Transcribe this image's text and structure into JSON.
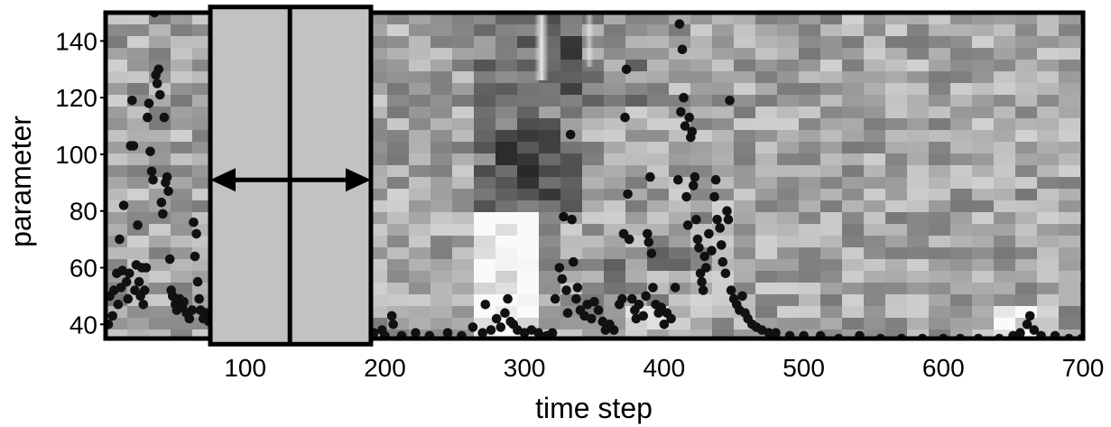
{
  "chart_data": {
    "type": "scatter",
    "title": "",
    "xlabel": "time step",
    "ylabel": "parameter",
    "xlim": [
      0,
      700
    ],
    "ylim": [
      35,
      150
    ],
    "xticks": [
      100,
      200,
      300,
      400,
      500,
      600,
      700
    ],
    "yticks": [
      40,
      60,
      80,
      100,
      120,
      140
    ],
    "grid": false,
    "background": "grayscale-heatmap",
    "colors": {
      "points": "#111111",
      "frame": "#000000",
      "window_fill": "#c2c2c2",
      "light_region": "#f2f2f2",
      "dark_region": "#3a3a3a"
    },
    "annotations": [
      {
        "type": "window-box",
        "x_range": [
          75,
          190
        ],
        "y_range": [
          33,
          152
        ],
        "center_x": 132
      },
      {
        "type": "double-arrow",
        "x_range": [
          75,
          190
        ],
        "y": 91
      }
    ],
    "points": [
      {
        "x": 2,
        "y": 40
      },
      {
        "x": 3,
        "y": 50
      },
      {
        "x": 5,
        "y": 43
      },
      {
        "x": 6,
        "y": 52
      },
      {
        "x": 8,
        "y": 58
      },
      {
        "x": 9,
        "y": 47
      },
      {
        "x": 10,
        "y": 70
      },
      {
        "x": 11,
        "y": 53
      },
      {
        "x": 12,
        "y": 59
      },
      {
        "x": 13,
        "y": 82
      },
      {
        "x": 15,
        "y": 55
      },
      {
        "x": 16,
        "y": 49
      },
      {
        "x": 17,
        "y": 58
      },
      {
        "x": 18,
        "y": 103
      },
      {
        "x": 19,
        "y": 119
      },
      {
        "x": 20,
        "y": 103
      },
      {
        "x": 21,
        "y": 52
      },
      {
        "x": 22,
        "y": 61
      },
      {
        "x": 23,
        "y": 75
      },
      {
        "x": 24,
        "y": 55
      },
      {
        "x": 25,
        "y": 50
      },
      {
        "x": 26,
        "y": 60
      },
      {
        "x": 27,
        "y": 47
      },
      {
        "x": 28,
        "y": 52
      },
      {
        "x": 29,
        "y": 60
      },
      {
        "x": 30,
        "y": 113
      },
      {
        "x": 31,
        "y": 118
      },
      {
        "x": 32,
        "y": 101
      },
      {
        "x": 33,
        "y": 94
      },
      {
        "x": 34,
        "y": 91
      },
      {
        "x": 35,
        "y": 150
      },
      {
        "x": 36,
        "y": 128
      },
      {
        "x": 37,
        "y": 125
      },
      {
        "x": 38,
        "y": 130
      },
      {
        "x": 39,
        "y": 121
      },
      {
        "x": 40,
        "y": 83
      },
      {
        "x": 41,
        "y": 79
      },
      {
        "x": 42,
        "y": 113
      },
      {
        "x": 43,
        "y": 90
      },
      {
        "x": 44,
        "y": 92
      },
      {
        "x": 45,
        "y": 87
      },
      {
        "x": 46,
        "y": 63
      },
      {
        "x": 47,
        "y": 52
      },
      {
        "x": 48,
        "y": 50
      },
      {
        "x": 50,
        "y": 47
      },
      {
        "x": 51,
        "y": 45
      },
      {
        "x": 53,
        "y": 49
      },
      {
        "x": 55,
        "y": 46
      },
      {
        "x": 56,
        "y": 48
      },
      {
        "x": 58,
        "y": 44
      },
      {
        "x": 60,
        "y": 42
      },
      {
        "x": 62,
        "y": 45
      },
      {
        "x": 63,
        "y": 76
      },
      {
        "x": 64,
        "y": 64
      },
      {
        "x": 65,
        "y": 72
      },
      {
        "x": 66,
        "y": 55
      },
      {
        "x": 67,
        "y": 49
      },
      {
        "x": 68,
        "y": 45
      },
      {
        "x": 70,
        "y": 42
      },
      {
        "x": 72,
        "y": 44
      },
      {
        "x": 74,
        "y": 41
      },
      {
        "x": 192,
        "y": 37
      },
      {
        "x": 198,
        "y": 38
      },
      {
        "x": 200,
        "y": 36
      },
      {
        "x": 205,
        "y": 43
      },
      {
        "x": 206,
        "y": 40
      },
      {
        "x": 212,
        "y": 36
      },
      {
        "x": 222,
        "y": 37
      },
      {
        "x": 232,
        "y": 36
      },
      {
        "x": 245,
        "y": 37
      },
      {
        "x": 255,
        "y": 36
      },
      {
        "x": 263,
        "y": 39
      },
      {
        "x": 270,
        "y": 37
      },
      {
        "x": 272,
        "y": 47
      },
      {
        "x": 276,
        "y": 38
      },
      {
        "x": 280,
        "y": 42
      },
      {
        "x": 283,
        "y": 39
      },
      {
        "x": 286,
        "y": 44
      },
      {
        "x": 288,
        "y": 49
      },
      {
        "x": 290,
        "y": 41
      },
      {
        "x": 292,
        "y": 40
      },
      {
        "x": 295,
        "y": 38
      },
      {
        "x": 300,
        "y": 37
      },
      {
        "x": 305,
        "y": 38
      },
      {
        "x": 310,
        "y": 37
      },
      {
        "x": 316,
        "y": 36
      },
      {
        "x": 320,
        "y": 37
      },
      {
        "x": 322,
        "y": 49
      },
      {
        "x": 325,
        "y": 60
      },
      {
        "x": 327,
        "y": 56
      },
      {
        "x": 328,
        "y": 78
      },
      {
        "x": 330,
        "y": 52
      },
      {
        "x": 331,
        "y": 44
      },
      {
        "x": 333,
        "y": 107
      },
      {
        "x": 334,
        "y": 77
      },
      {
        "x": 335,
        "y": 62
      },
      {
        "x": 337,
        "y": 49
      },
      {
        "x": 338,
        "y": 53
      },
      {
        "x": 340,
        "y": 45
      },
      {
        "x": 343,
        "y": 43
      },
      {
        "x": 345,
        "y": 47
      },
      {
        "x": 348,
        "y": 42
      },
      {
        "x": 350,
        "y": 48
      },
      {
        "x": 353,
        "y": 45
      },
      {
        "x": 356,
        "y": 41
      },
      {
        "x": 358,
        "y": 38
      },
      {
        "x": 361,
        "y": 40
      },
      {
        "x": 364,
        "y": 38
      },
      {
        "x": 368,
        "y": 47
      },
      {
        "x": 370,
        "y": 49
      },
      {
        "x": 371,
        "y": 72
      },
      {
        "x": 372,
        "y": 113
      },
      {
        "x": 373,
        "y": 130
      },
      {
        "x": 374,
        "y": 86
      },
      {
        "x": 375,
        "y": 70
      },
      {
        "x": 377,
        "y": 49
      },
      {
        "x": 379,
        "y": 45
      },
      {
        "x": 380,
        "y": 42
      },
      {
        "x": 382,
        "y": 47
      },
      {
        "x": 385,
        "y": 43
      },
      {
        "x": 387,
        "y": 50
      },
      {
        "x": 388,
        "y": 72
      },
      {
        "x": 389,
        "y": 69
      },
      {
        "x": 390,
        "y": 92
      },
      {
        "x": 391,
        "y": 65
      },
      {
        "x": 392,
        "y": 53
      },
      {
        "x": 394,
        "y": 47
      },
      {
        "x": 396,
        "y": 44
      },
      {
        "x": 398,
        "y": 46
      },
      {
        "x": 400,
        "y": 40
      },
      {
        "x": 402,
        "y": 44
      },
      {
        "x": 405,
        "y": 42
      },
      {
        "x": 408,
        "y": 53
      },
      {
        "x": 410,
        "y": 91
      },
      {
        "x": 411,
        "y": 146
      },
      {
        "x": 412,
        "y": 115
      },
      {
        "x": 413,
        "y": 137
      },
      {
        "x": 414,
        "y": 120
      },
      {
        "x": 415,
        "y": 110
      },
      {
        "x": 416,
        "y": 85
      },
      {
        "x": 417,
        "y": 75
      },
      {
        "x": 418,
        "y": 113
      },
      {
        "x": 419,
        "y": 106
      },
      {
        "x": 420,
        "y": 108
      },
      {
        "x": 421,
        "y": 89
      },
      {
        "x": 422,
        "y": 92
      },
      {
        "x": 423,
        "y": 77
      },
      {
        "x": 424,
        "y": 70
      },
      {
        "x": 425,
        "y": 67
      },
      {
        "x": 426,
        "y": 58
      },
      {
        "x": 427,
        "y": 55
      },
      {
        "x": 428,
        "y": 52
      },
      {
        "x": 429,
        "y": 64
      },
      {
        "x": 430,
        "y": 60
      },
      {
        "x": 432,
        "y": 72
      },
      {
        "x": 434,
        "y": 66
      },
      {
        "x": 436,
        "y": 85
      },
      {
        "x": 437,
        "y": 91
      },
      {
        "x": 438,
        "y": 77
      },
      {
        "x": 440,
        "y": 74
      },
      {
        "x": 441,
        "y": 68
      },
      {
        "x": 442,
        "y": 62
      },
      {
        "x": 444,
        "y": 58
      },
      {
        "x": 445,
        "y": 80
      },
      {
        "x": 446,
        "y": 77
      },
      {
        "x": 447,
        "y": 119
      },
      {
        "x": 448,
        "y": 52
      },
      {
        "x": 450,
        "y": 49
      },
      {
        "x": 452,
        "y": 47
      },
      {
        "x": 454,
        "y": 45
      },
      {
        "x": 456,
        "y": 50
      },
      {
        "x": 458,
        "y": 44
      },
      {
        "x": 460,
        "y": 42
      },
      {
        "x": 463,
        "y": 40
      },
      {
        "x": 466,
        "y": 39
      },
      {
        "x": 470,
        "y": 38
      },
      {
        "x": 475,
        "y": 37
      },
      {
        "x": 480,
        "y": 37
      },
      {
        "x": 490,
        "y": 36
      },
      {
        "x": 500,
        "y": 36
      },
      {
        "x": 512,
        "y": 36
      },
      {
        "x": 525,
        "y": 35
      },
      {
        "x": 540,
        "y": 36
      },
      {
        "x": 555,
        "y": 35
      },
      {
        "x": 570,
        "y": 35
      },
      {
        "x": 585,
        "y": 35
      },
      {
        "x": 600,
        "y": 35
      },
      {
        "x": 612,
        "y": 35
      },
      {
        "x": 625,
        "y": 35
      },
      {
        "x": 640,
        "y": 35
      },
      {
        "x": 650,
        "y": 36
      },
      {
        "x": 655,
        "y": 37
      },
      {
        "x": 660,
        "y": 40
      },
      {
        "x": 662,
        "y": 43
      },
      {
        "x": 665,
        "y": 38
      },
      {
        "x": 670,
        "y": 36
      },
      {
        "x": 680,
        "y": 36
      },
      {
        "x": 690,
        "y": 35
      },
      {
        "x": 699,
        "y": 35
      }
    ]
  }
}
